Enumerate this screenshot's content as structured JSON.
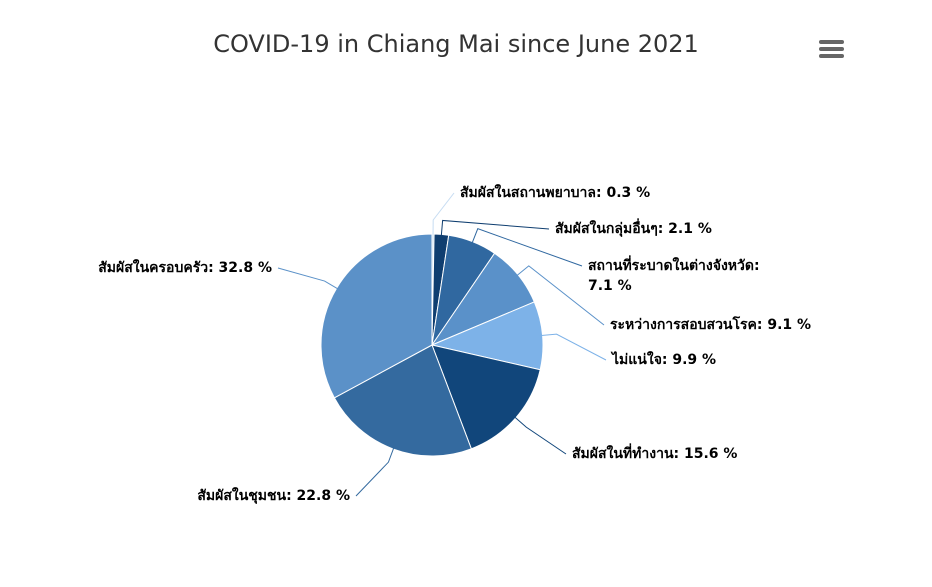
{
  "chart_data": {
    "type": "pie",
    "title": "COVID-19 in Chiang Mai since June 2021",
    "values": [
      0.3,
      2.1,
      7.1,
      9.1,
      9.9,
      15.6,
      22.8,
      32.8
    ],
    "value_labels": [
      "สัมผัสในสถานพยาบาล: 0.3 %",
      "สัมผัสในกลุ่มอื่นๆ: 2.1 %",
      "สถานที่ระบาดในต่างจังหวัด: 7.1 %",
      "ระหว่างการสอบสวนโรค: 9.1 %",
      "ไม่แน่ใจ: 9.9 %",
      "สัมผัสในที่ทำงาน: 15.6 %",
      "สัมผัสในชุมชน: 22.8 %",
      "สัมผัสในครอบครัว: 32.8 %"
    ],
    "colors": [
      "#c6dcf2",
      "#0f3e70",
      "#3068a0",
      "#5a91c9",
      "#7db2e8",
      "#11467b",
      "#346a9f",
      "#5b91c8"
    ]
  }
}
